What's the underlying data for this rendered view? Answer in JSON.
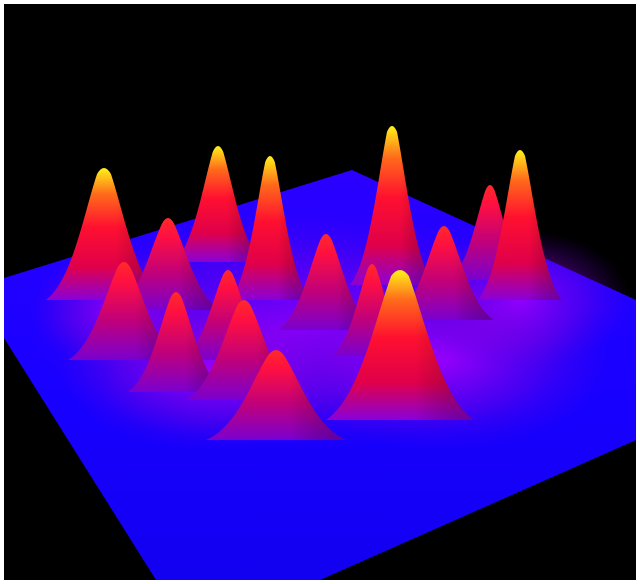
{
  "scene": {
    "subject": "3d-surface-render",
    "colors": {
      "frame": "#ffffff",
      "background": "#000000",
      "plane": "#1a00ff",
      "plane_edge": "#0e00c8",
      "peak_base": "#ff0033",
      "peak_mid": "#ff5a1e",
      "peak_tip": "#ffef1a",
      "foothill": "#8a00d8"
    }
  }
}
